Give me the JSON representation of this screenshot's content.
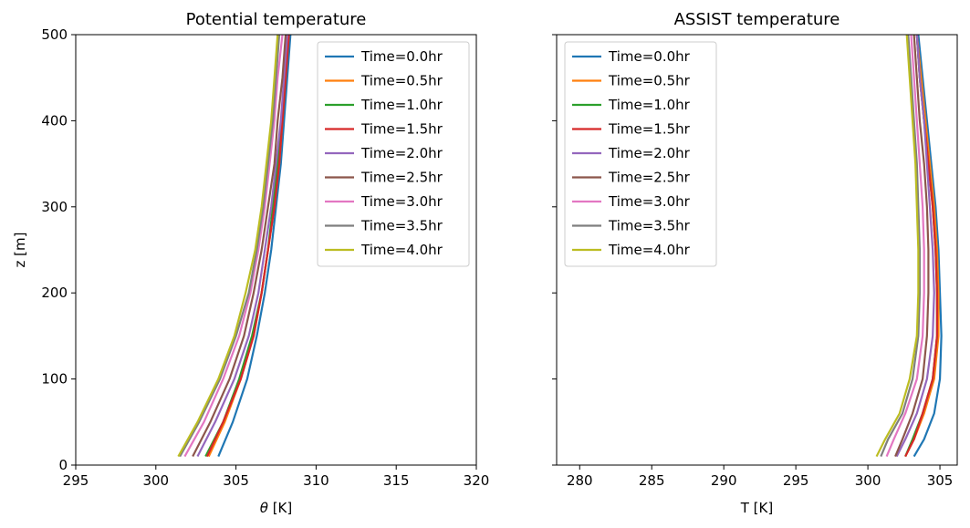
{
  "chart_data": [
    {
      "type": "line",
      "title": "Potential temperature",
      "xlabel_symbol": "θ",
      "xlabel_unit": " [K]",
      "ylabel": "z [m]",
      "xlim": [
        295,
        320
      ],
      "ylim": [
        0,
        500
      ],
      "xticks": [
        295,
        300,
        305,
        310,
        315,
        320
      ],
      "yticks": [
        0,
        100,
        200,
        300,
        400,
        500
      ],
      "legend_position": "top-right",
      "series": [
        {
          "name": "Time=0.0hr",
          "color": "#1f77b4",
          "z": [
            10,
            50,
            100,
            150,
            200,
            250,
            300,
            350,
            400,
            450,
            500
          ],
          "values": [
            303.9,
            304.8,
            305.7,
            306.3,
            306.8,
            307.2,
            307.5,
            307.8,
            308.0,
            308.2,
            308.4
          ]
        },
        {
          "name": "Time=0.5hr",
          "color": "#ff7f0e",
          "z": [
            10,
            50,
            100,
            150,
            200,
            250,
            300,
            350,
            400,
            450,
            500
          ],
          "values": [
            303.3,
            304.3,
            305.3,
            306.1,
            306.6,
            307.0,
            307.4,
            307.7,
            307.9,
            308.1,
            308.3
          ]
        },
        {
          "name": "Time=1.0hr",
          "color": "#2ca02c",
          "z": [
            10,
            50,
            100,
            150,
            200,
            250,
            300,
            350,
            400,
            450,
            500
          ],
          "values": [
            303.1,
            304.2,
            305.2,
            306.0,
            306.6,
            307.0,
            307.3,
            307.6,
            307.9,
            308.1,
            308.3
          ]
        },
        {
          "name": "Time=1.5hr",
          "color": "#d62728",
          "z": [
            10,
            50,
            100,
            150,
            200,
            250,
            300,
            350,
            400,
            450,
            500
          ],
          "values": [
            303.2,
            304.2,
            305.3,
            306.1,
            306.6,
            307.0,
            307.4,
            307.7,
            307.9,
            308.1,
            308.3
          ]
        },
        {
          "name": "Time=2.0hr",
          "color": "#9467bd",
          "z": [
            10,
            50,
            100,
            150,
            200,
            250,
            300,
            350,
            400,
            450,
            500
          ],
          "values": [
            302.6,
            303.7,
            304.9,
            305.8,
            306.4,
            306.8,
            307.2,
            307.5,
            307.8,
            308.0,
            308.2
          ]
        },
        {
          "name": "Time=2.5hr",
          "color": "#8c564b",
          "z": [
            10,
            50,
            100,
            150,
            200,
            250,
            300,
            350,
            400,
            450,
            500
          ],
          "values": [
            302.3,
            303.4,
            304.6,
            305.5,
            306.1,
            306.6,
            307.0,
            307.4,
            307.6,
            307.9,
            308.1
          ]
        },
        {
          "name": "Time=3.0hr",
          "color": "#e377c2",
          "z": [
            10,
            50,
            100,
            150,
            200,
            250,
            300,
            350,
            400,
            450,
            500
          ],
          "values": [
            301.8,
            303.0,
            304.2,
            305.2,
            305.9,
            306.4,
            306.8,
            307.1,
            307.4,
            307.6,
            307.9
          ]
        },
        {
          "name": "Time=3.5hr",
          "color": "#7f7f7f",
          "z": [
            10,
            50,
            100,
            150,
            200,
            250,
            300,
            350,
            400,
            450,
            500
          ],
          "values": [
            301.5,
            302.7,
            304.0,
            305.0,
            305.8,
            306.3,
            306.7,
            307.0,
            307.3,
            307.5,
            307.7
          ]
        },
        {
          "name": "Time=4.0hr",
          "color": "#bcbd22",
          "z": [
            10,
            50,
            100,
            150,
            200,
            250,
            300,
            350,
            400,
            450,
            500
          ],
          "values": [
            301.4,
            302.6,
            303.9,
            304.9,
            305.6,
            306.2,
            306.6,
            306.9,
            307.2,
            307.4,
            307.6
          ]
        }
      ]
    },
    {
      "type": "line",
      "title": "ASSIST temperature",
      "xlabel_symbol": "",
      "xlabel_unit": "T [K]",
      "ylabel": "",
      "xlim": [
        278.4,
        306.2
      ],
      "ylim": [
        0,
        500
      ],
      "xticks": [
        280,
        285,
        290,
        295,
        300,
        305
      ],
      "yticks": [
        0,
        100,
        200,
        300,
        400,
        500
      ],
      "legend_position": "top-left",
      "series": [
        {
          "name": "Time=0.0hr",
          "color": "#1f77b4",
          "z": [
            10,
            30,
            60,
            100,
            150,
            200,
            250,
            300,
            350,
            400,
            450,
            500
          ],
          "values": [
            303.2,
            303.9,
            304.6,
            305.0,
            305.1,
            305.0,
            304.9,
            304.7,
            304.4,
            304.1,
            303.8,
            303.5
          ]
        },
        {
          "name": "Time=0.5hr",
          "color": "#ff7f0e",
          "z": [
            10,
            30,
            60,
            100,
            150,
            200,
            250,
            300,
            350,
            400,
            450,
            500
          ],
          "values": [
            302.6,
            303.2,
            303.9,
            304.6,
            304.9,
            304.9,
            304.8,
            304.6,
            304.3,
            304.0,
            303.7,
            303.4
          ]
        },
        {
          "name": "Time=1.0hr",
          "color": "#2ca02c",
          "z": [
            10,
            30,
            60,
            100,
            150,
            200,
            250,
            300,
            350,
            400,
            450,
            500
          ],
          "values": [
            302.6,
            303.1,
            303.8,
            304.5,
            304.8,
            304.8,
            304.7,
            304.5,
            304.2,
            303.9,
            303.6,
            303.4
          ]
        },
        {
          "name": "Time=1.5hr",
          "color": "#d62728",
          "z": [
            10,
            30,
            60,
            100,
            150,
            200,
            250,
            300,
            350,
            400,
            450,
            500
          ],
          "values": [
            302.6,
            303.2,
            303.8,
            304.5,
            304.8,
            304.8,
            304.7,
            304.5,
            304.2,
            303.9,
            303.6,
            303.4
          ]
        },
        {
          "name": "Time=2.0hr",
          "color": "#9467bd",
          "z": [
            10,
            30,
            60,
            100,
            150,
            200,
            250,
            300,
            350,
            400,
            450,
            500
          ],
          "values": [
            302.0,
            302.6,
            303.4,
            304.1,
            304.5,
            304.6,
            304.5,
            304.3,
            304.1,
            303.9,
            303.6,
            303.4
          ]
        },
        {
          "name": "Time=2.5hr",
          "color": "#8c564b",
          "z": [
            10,
            30,
            60,
            100,
            150,
            200,
            250,
            300,
            350,
            400,
            450,
            500
          ],
          "values": [
            301.9,
            302.4,
            303.1,
            303.8,
            304.1,
            304.2,
            304.2,
            304.1,
            303.9,
            303.6,
            303.4,
            303.2
          ]
        },
        {
          "name": "Time=3.0hr",
          "color": "#e377c2",
          "z": [
            10,
            30,
            60,
            100,
            150,
            200,
            250,
            300,
            350,
            400,
            450,
            500
          ],
          "values": [
            301.3,
            301.8,
            302.6,
            303.4,
            303.8,
            303.9,
            303.9,
            303.8,
            303.6,
            303.4,
            303.2,
            303.0
          ]
        },
        {
          "name": "Time=3.5hr",
          "color": "#7f7f7f",
          "z": [
            10,
            30,
            60,
            100,
            150,
            200,
            250,
            300,
            350,
            400,
            450,
            500
          ],
          "values": [
            300.9,
            301.4,
            302.4,
            303.1,
            303.5,
            303.6,
            303.6,
            303.5,
            303.4,
            303.2,
            303.0,
            302.8
          ]
        },
        {
          "name": "Time=4.0hr",
          "color": "#bcbd22",
          "z": [
            10,
            30,
            60,
            100,
            150,
            200,
            250,
            300,
            350,
            400,
            450,
            500
          ],
          "values": [
            300.6,
            301.2,
            302.2,
            302.9,
            303.4,
            303.5,
            303.5,
            303.4,
            303.3,
            303.1,
            302.9,
            302.7
          ]
        }
      ]
    }
  ]
}
